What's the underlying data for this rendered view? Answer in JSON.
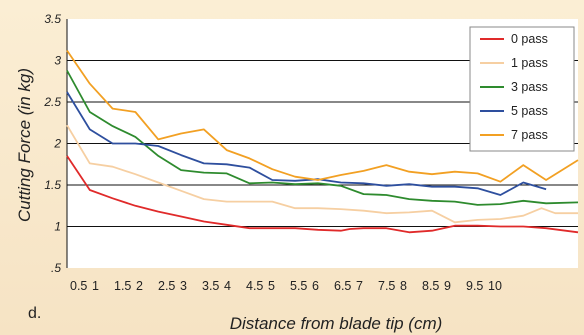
{
  "chart_data": {
    "type": "line",
    "panel_label": "d.",
    "xlabel": "Distance from blade tip (cm)",
    "ylabel": "Cutting Force (in kg)",
    "ylim": [
      0.5,
      3.5
    ],
    "xlim": [
      0.5,
      11.7
    ],
    "y_ticks": [
      "3.5",
      "3",
      "2.5",
      "2",
      "1.5",
      "1",
      ".5"
    ],
    "y_tick_values": [
      3.5,
      3,
      2.5,
      2,
      1.5,
      1,
      0.5
    ],
    "gridlines_y": [
      3.0,
      2.5,
      2.0,
      1.5,
      1.0
    ],
    "x_tick_labels": [
      "0.5",
      "1",
      "1.5",
      "2",
      "2.5",
      "3",
      "3.5",
      "4",
      "4.5",
      "5",
      "5.5",
      "6",
      "6.5",
      "7",
      "7.5",
      "8",
      "8.5",
      "9",
      "9.5",
      "10"
    ],
    "grid": true,
    "legend_position": "top-right",
    "series": [
      {
        "name": "0 pass",
        "color": "#e02a2a",
        "points": [
          [
            0.5,
            1.85
          ],
          [
            1.0,
            1.44
          ],
          [
            1.5,
            1.34
          ],
          [
            2.0,
            1.25
          ],
          [
            2.5,
            1.18
          ],
          [
            3.0,
            1.12
          ],
          [
            3.5,
            1.06
          ],
          [
            4.0,
            1.02
          ],
          [
            4.5,
            0.98
          ],
          [
            5.0,
            0.98
          ],
          [
            5.5,
            0.98
          ],
          [
            6.0,
            0.96
          ],
          [
            6.5,
            0.95
          ],
          [
            6.7,
            0.97
          ],
          [
            7.0,
            0.98
          ],
          [
            7.5,
            0.98
          ],
          [
            8.0,
            0.93
          ],
          [
            8.5,
            0.95
          ],
          [
            9.0,
            1.01
          ],
          [
            9.5,
            1.01
          ],
          [
            10.0,
            1.0
          ],
          [
            10.5,
            1.0
          ],
          [
            11.0,
            0.98
          ],
          [
            11.7,
            0.93
          ]
        ]
      },
      {
        "name": "1 pass",
        "color": "#f6cfa2",
        "points": [
          [
            0.5,
            2.22
          ],
          [
            1.0,
            1.76
          ],
          [
            1.5,
            1.72
          ],
          [
            2.0,
            1.63
          ],
          [
            2.5,
            1.53
          ],
          [
            3.0,
            1.43
          ],
          [
            3.5,
            1.33
          ],
          [
            4.0,
            1.3
          ],
          [
            4.5,
            1.3
          ],
          [
            5.0,
            1.3
          ],
          [
            5.5,
            1.22
          ],
          [
            6.0,
            1.22
          ],
          [
            6.5,
            1.21
          ],
          [
            7.0,
            1.19
          ],
          [
            7.5,
            1.16
          ],
          [
            8.0,
            1.17
          ],
          [
            8.5,
            1.19
          ],
          [
            9.0,
            1.05
          ],
          [
            9.5,
            1.08
          ],
          [
            10.0,
            1.09
          ],
          [
            10.5,
            1.13
          ],
          [
            10.9,
            1.22
          ],
          [
            11.2,
            1.16
          ],
          [
            11.7,
            1.16
          ]
        ]
      },
      {
        "name": "3 pass",
        "color": "#2e8b2e",
        "points": [
          [
            0.5,
            2.88
          ],
          [
            1.0,
            2.38
          ],
          [
            1.5,
            2.21
          ],
          [
            2.0,
            2.08
          ],
          [
            2.5,
            1.85
          ],
          [
            3.0,
            1.68
          ],
          [
            3.5,
            1.65
          ],
          [
            4.0,
            1.64
          ],
          [
            4.5,
            1.52
          ],
          [
            5.0,
            1.53
          ],
          [
            5.5,
            1.51
          ],
          [
            6.0,
            1.52
          ],
          [
            6.5,
            1.49
          ],
          [
            7.0,
            1.39
          ],
          [
            7.5,
            1.38
          ],
          [
            8.0,
            1.33
          ],
          [
            8.5,
            1.31
          ],
          [
            9.0,
            1.3
          ],
          [
            9.5,
            1.26
          ],
          [
            10.0,
            1.27
          ],
          [
            10.5,
            1.31
          ],
          [
            11.0,
            1.28
          ],
          [
            11.7,
            1.29
          ]
        ]
      },
      {
        "name": "5 pass",
        "color": "#2e4f9e",
        "points": [
          [
            0.5,
            2.62
          ],
          [
            1.0,
            2.17
          ],
          [
            1.5,
            2.0
          ],
          [
            2.0,
            2.0
          ],
          [
            2.5,
            1.97
          ],
          [
            3.0,
            1.86
          ],
          [
            3.5,
            1.76
          ],
          [
            4.0,
            1.75
          ],
          [
            4.5,
            1.71
          ],
          [
            5.0,
            1.56
          ],
          [
            5.5,
            1.55
          ],
          [
            6.0,
            1.57
          ],
          [
            6.5,
            1.53
          ],
          [
            7.0,
            1.52
          ],
          [
            7.5,
            1.49
          ],
          [
            8.0,
            1.51
          ],
          [
            8.5,
            1.48
          ],
          [
            9.0,
            1.48
          ],
          [
            9.5,
            1.46
          ],
          [
            10.0,
            1.38
          ],
          [
            10.5,
            1.53
          ],
          [
            11.0,
            1.45
          ]
        ]
      },
      {
        "name": "7 pass",
        "color": "#f2a023",
        "points": [
          [
            0.5,
            3.12
          ],
          [
            1.0,
            2.72
          ],
          [
            1.5,
            2.42
          ],
          [
            2.0,
            2.38
          ],
          [
            2.5,
            2.05
          ],
          [
            3.0,
            2.12
          ],
          [
            3.5,
            2.17
          ],
          [
            4.0,
            1.92
          ],
          [
            4.5,
            1.82
          ],
          [
            5.0,
            1.69
          ],
          [
            5.5,
            1.6
          ],
          [
            6.0,
            1.56
          ],
          [
            6.5,
            1.62
          ],
          [
            7.0,
            1.67
          ],
          [
            7.5,
            1.74
          ],
          [
            8.0,
            1.66
          ],
          [
            8.5,
            1.63
          ],
          [
            9.0,
            1.66
          ],
          [
            9.5,
            1.64
          ],
          [
            10.0,
            1.54
          ],
          [
            10.5,
            1.74
          ],
          [
            11.0,
            1.56
          ],
          [
            11.7,
            1.8
          ]
        ]
      }
    ]
  }
}
